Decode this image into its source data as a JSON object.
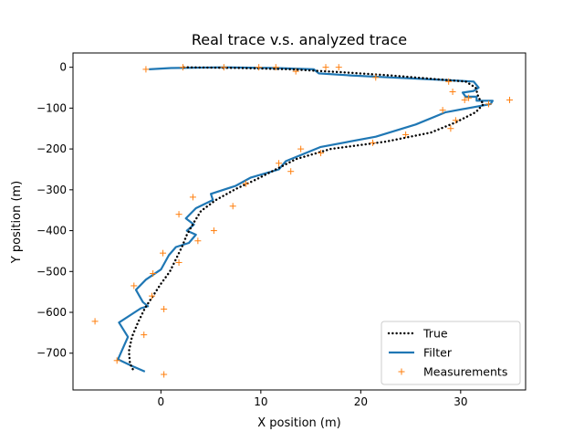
{
  "chart_data": {
    "type": "line",
    "title": "Real trace v.s. analyzed trace",
    "xlabel": "X position (m)",
    "ylabel": "Y position (m)",
    "xlim": [
      -8.8,
      36.5
    ],
    "ylim": [
      -790,
      35
    ],
    "x_ticks": [
      0,
      10,
      20,
      30
    ],
    "y_ticks": [
      0,
      -100,
      -200,
      -300,
      -400,
      -500,
      -600,
      -700
    ],
    "grid": false,
    "legend_position": "lower-right",
    "series": [
      {
        "name": "True",
        "style": "dotted",
        "color": "#000000",
        "points": [
          [
            2.3,
            0
          ],
          [
            8,
            -2
          ],
          [
            13,
            -5
          ],
          [
            18,
            -12
          ],
          [
            23,
            -20
          ],
          [
            27,
            -28
          ],
          [
            30.5,
            -35
          ],
          [
            31.5,
            -50
          ],
          [
            31.8,
            -75
          ],
          [
            32.3,
            -90
          ],
          [
            31.5,
            -110
          ],
          [
            29.5,
            -135
          ],
          [
            27,
            -160
          ],
          [
            22.5,
            -182
          ],
          [
            17,
            -200
          ],
          [
            13.5,
            -225
          ],
          [
            11.5,
            -250
          ],
          [
            9.5,
            -275
          ],
          [
            7.5,
            -298
          ],
          [
            5.5,
            -325
          ],
          [
            4,
            -352
          ],
          [
            3.3,
            -380
          ],
          [
            2.6,
            -410
          ],
          [
            2.1,
            -440
          ],
          [
            1.5,
            -470
          ],
          [
            0.9,
            -500
          ],
          [
            0,
            -530
          ],
          [
            -0.8,
            -560
          ],
          [
            -1.6,
            -590
          ],
          [
            -2.3,
            -625
          ],
          [
            -2.9,
            -660
          ],
          [
            -3.2,
            -695
          ],
          [
            -3.1,
            -725
          ],
          [
            -2.7,
            -745
          ]
        ]
      },
      {
        "name": "Filter",
        "style": "solid",
        "color": "#1f77b4",
        "points": [
          [
            -1.2,
            -5
          ],
          [
            1,
            -2
          ],
          [
            6.3,
            0
          ],
          [
            11.5,
            -2
          ],
          [
            15.3,
            -5
          ],
          [
            15.8,
            -15
          ],
          [
            19,
            -20
          ],
          [
            23,
            -25
          ],
          [
            27.5,
            -30
          ],
          [
            31.3,
            -35
          ],
          [
            31.8,
            -50
          ],
          [
            31.3,
            -58
          ],
          [
            30.2,
            -62
          ],
          [
            30.5,
            -72
          ],
          [
            31.6,
            -72
          ],
          [
            31.6,
            -82
          ],
          [
            33.2,
            -82
          ],
          [
            33,
            -90
          ],
          [
            28.5,
            -110
          ],
          [
            25.5,
            -140
          ],
          [
            21.5,
            -170
          ],
          [
            16,
            -195
          ],
          [
            12.5,
            -230
          ],
          [
            11.8,
            -250
          ],
          [
            9,
            -270
          ],
          [
            7.5,
            -290
          ],
          [
            5,
            -310
          ],
          [
            5.2,
            -325
          ],
          [
            3.5,
            -345
          ],
          [
            2.5,
            -370
          ],
          [
            3.3,
            -385
          ],
          [
            2.6,
            -400
          ],
          [
            3.5,
            -410
          ],
          [
            2.8,
            -430
          ],
          [
            1.5,
            -440
          ],
          [
            0.8,
            -460
          ],
          [
            0,
            -495
          ],
          [
            -1.5,
            -520
          ],
          [
            -2.5,
            -545
          ],
          [
            -1.8,
            -575
          ],
          [
            -1.3,
            -585
          ],
          [
            -2,
            -590
          ],
          [
            -4.2,
            -625
          ],
          [
            -3.3,
            -660
          ],
          [
            -4.3,
            -715
          ],
          [
            -3,
            -730
          ],
          [
            -1.6,
            -745
          ]
        ]
      },
      {
        "name": "Measurements",
        "style": "marker-plus",
        "color": "#ff7f0e",
        "points": [
          [
            -1.5,
            -5
          ],
          [
            2.2,
            0
          ],
          [
            6.3,
            0
          ],
          [
            9.8,
            0
          ],
          [
            11.5,
            0
          ],
          [
            13.5,
            -10
          ],
          [
            16.5,
            0
          ],
          [
            17.8,
            0
          ],
          [
            21.5,
            -25
          ],
          [
            28.8,
            -35
          ],
          [
            29.2,
            -60
          ],
          [
            30.8,
            -75
          ],
          [
            30.4,
            -80
          ],
          [
            34.9,
            -80
          ],
          [
            32.8,
            -90
          ],
          [
            28.2,
            -105
          ],
          [
            29.5,
            -130
          ],
          [
            29,
            -150
          ],
          [
            24.5,
            -165
          ],
          [
            21.2,
            -185
          ],
          [
            16,
            -210
          ],
          [
            14,
            -200
          ],
          [
            13,
            -255
          ],
          [
            11.8,
            -235
          ],
          [
            8.5,
            -285
          ],
          [
            7.2,
            -340
          ],
          [
            3.2,
            -318
          ],
          [
            1.8,
            -360
          ],
          [
            3.7,
            -425
          ],
          [
            5.3,
            -400
          ],
          [
            1.8,
            -478
          ],
          [
            0.2,
            -455
          ],
          [
            -0.8,
            -505
          ],
          [
            -0.9,
            -560
          ],
          [
            -2.7,
            -535
          ],
          [
            0.3,
            -592
          ],
          [
            -1.7,
            -655
          ],
          [
            -6.6,
            -622
          ],
          [
            -4.4,
            -718
          ],
          [
            0.3,
            -752
          ]
        ]
      }
    ]
  }
}
